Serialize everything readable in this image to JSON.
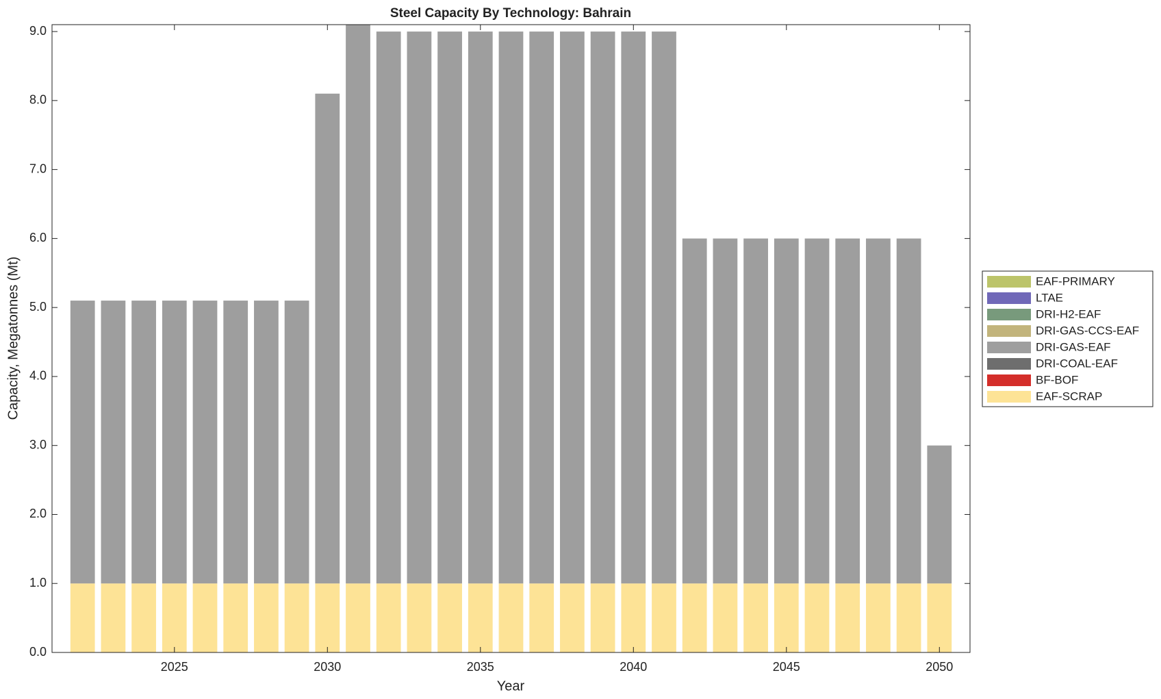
{
  "chart_data": {
    "type": "stacked_bar",
    "title": "Steel Capacity By Technology: Bahrain",
    "xlabel": "Year",
    "ylabel": "Capacity, Megatonnes (Mt)",
    "x": [
      2022,
      2023,
      2024,
      2025,
      2026,
      2027,
      2028,
      2029,
      2030,
      2031,
      2032,
      2033,
      2034,
      2035,
      2036,
      2037,
      2038,
      2039,
      2040,
      2041,
      2042,
      2043,
      2044,
      2045,
      2046,
      2047,
      2048,
      2049,
      2050
    ],
    "series": [
      {
        "name": "EAF-SCRAP",
        "color": "#fde396",
        "values": [
          1,
          1,
          1,
          1,
          1,
          1,
          1,
          1,
          1,
          1,
          1,
          1,
          1,
          1,
          1,
          1,
          1,
          1,
          1,
          1,
          1,
          1,
          1,
          1,
          1,
          1,
          1,
          1,
          1
        ]
      },
      {
        "name": "BF-BOF",
        "color": "#d42e2a",
        "values": [
          0,
          0,
          0,
          0,
          0,
          0,
          0,
          0,
          0,
          0,
          0,
          0,
          0,
          0,
          0,
          0,
          0,
          0,
          0,
          0,
          0,
          0,
          0,
          0,
          0,
          0,
          0,
          0,
          0
        ]
      },
      {
        "name": "DRI-COAL-EAF",
        "color": "#6e6e6e",
        "values": [
          0,
          0,
          0,
          0,
          0,
          0,
          0,
          0,
          0,
          0,
          0,
          0,
          0,
          0,
          0,
          0,
          0,
          0,
          0,
          0,
          0,
          0,
          0,
          0,
          0,
          0,
          0,
          0,
          0
        ]
      },
      {
        "name": "DRI-GAS-EAF",
        "color": "#9e9e9e",
        "values": [
          4.1,
          4.1,
          4.1,
          4.1,
          4.1,
          4.1,
          4.1,
          4.1,
          7.1,
          8.1,
          8,
          8,
          8,
          8,
          8,
          8,
          8,
          8,
          8,
          8,
          5,
          5,
          5,
          5,
          5,
          5,
          5,
          5,
          2
        ]
      },
      {
        "name": "DRI-GAS-CCS-EAF",
        "color": "#c2b47c",
        "values": [
          0,
          0,
          0,
          0,
          0,
          0,
          0,
          0,
          0,
          0,
          0,
          0,
          0,
          0,
          0,
          0,
          0,
          0,
          0,
          0,
          0,
          0,
          0,
          0,
          0,
          0,
          0,
          0,
          0
        ]
      },
      {
        "name": "DRI-H2-EAF",
        "color": "#789a7c",
        "values": [
          0,
          0,
          0,
          0,
          0,
          0,
          0,
          0,
          0,
          0,
          0,
          0,
          0,
          0,
          0,
          0,
          0,
          0,
          0,
          0,
          0,
          0,
          0,
          0,
          0,
          0,
          0,
          0,
          0
        ]
      },
      {
        "name": "LTAE",
        "color": "#7068b8",
        "values": [
          0,
          0,
          0,
          0,
          0,
          0,
          0,
          0,
          0,
          0,
          0,
          0,
          0,
          0,
          0,
          0,
          0,
          0,
          0,
          0,
          0,
          0,
          0,
          0,
          0,
          0,
          0,
          0,
          0
        ]
      },
      {
        "name": "EAF-PRIMARY",
        "color": "#bcc46a",
        "values": [
          0,
          0,
          0,
          0,
          0,
          0,
          0,
          0,
          0,
          0,
          0,
          0,
          0,
          0,
          0,
          0,
          0,
          0,
          0,
          0,
          0,
          0,
          0,
          0,
          0,
          0,
          0,
          0,
          0
        ]
      }
    ],
    "xlim": [
      2021,
      2051
    ],
    "xticks": [
      2025,
      2030,
      2035,
      2040,
      2045,
      2050
    ],
    "ylim": [
      0,
      9.1
    ],
    "yticks": [
      {
        "value": 0,
        "label": "0.0"
      },
      {
        "value": 1,
        "label": "1.0"
      },
      {
        "value": 2,
        "label": "2.0"
      },
      {
        "value": 3,
        "label": "3.0"
      },
      {
        "value": 4,
        "label": "4.0"
      },
      {
        "value": 5,
        "label": "5.0"
      },
      {
        "value": 6,
        "label": "6.0"
      },
      {
        "value": 7,
        "label": "7.0"
      },
      {
        "value": 8,
        "label": "8.0"
      },
      {
        "value": 9,
        "label": "9.0"
      }
    ],
    "legend": "outside-right"
  }
}
